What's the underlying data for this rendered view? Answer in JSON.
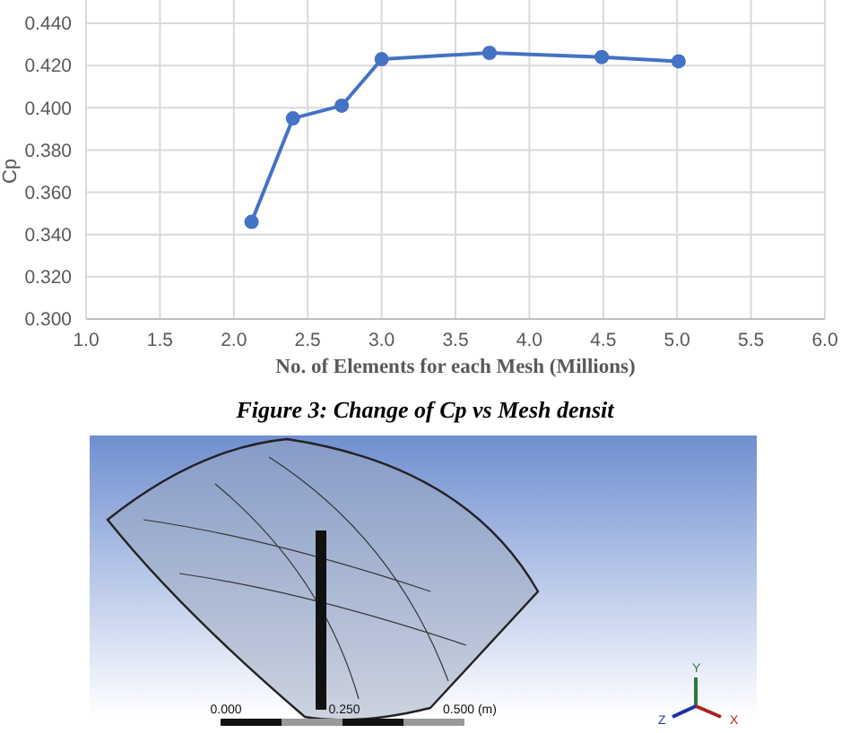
{
  "chart_data": {
    "type": "line",
    "xlabel": "No. of Elements for each Mesh (Millions)",
    "ylabel": "Cp",
    "x": [
      2.12,
      2.4,
      2.73,
      3.0,
      3.73,
      4.49,
      5.01
    ],
    "series": [
      {
        "color": "#4472c4",
        "values": [
          0.346,
          0.395,
          0.401,
          0.423,
          0.426,
          0.424,
          0.422
        ]
      }
    ],
    "xlim": [
      1.0,
      6.0
    ],
    "xticks": [
      {
        "value": 1,
        "label": "1.0"
      },
      {
        "value": 1.5,
        "label": "1.5"
      },
      {
        "value": 2,
        "label": "2.0"
      },
      {
        "value": 2.5,
        "label": "2.5"
      },
      {
        "value": 3,
        "label": "3.0"
      },
      {
        "value": 3.5,
        "label": "3.5"
      },
      {
        "value": 4,
        "label": "4.0"
      },
      {
        "value": 4.5,
        "label": "4.5"
      },
      {
        "value": 5,
        "label": "5.0"
      },
      {
        "value": 5.5,
        "label": "5.5"
      },
      {
        "value": 6,
        "label": "6.0"
      }
    ],
    "ylim": [
      0.3,
      0.44
    ],
    "yticks": [
      {
        "value": 0.3,
        "label": "0.300"
      },
      {
        "value": 0.32,
        "label": "0.320"
      },
      {
        "value": 0.34,
        "label": "0.340"
      },
      {
        "value": 0.36,
        "label": "0.360"
      },
      {
        "value": 0.38,
        "label": "0.380"
      },
      {
        "value": 0.4,
        "label": "0.400"
      },
      {
        "value": 0.42,
        "label": "0.420"
      },
      {
        "value": 0.44,
        "label": "0.440"
      }
    ],
    "grid": true,
    "marker": "circle",
    "line_style": "solid",
    "annotations": [
      "Figure 3: Change of Cp vs Mesh densit",
      "0.000",
      "0.250",
      "0.500 (m)",
      "X",
      "Y",
      "Z"
    ]
  }
}
